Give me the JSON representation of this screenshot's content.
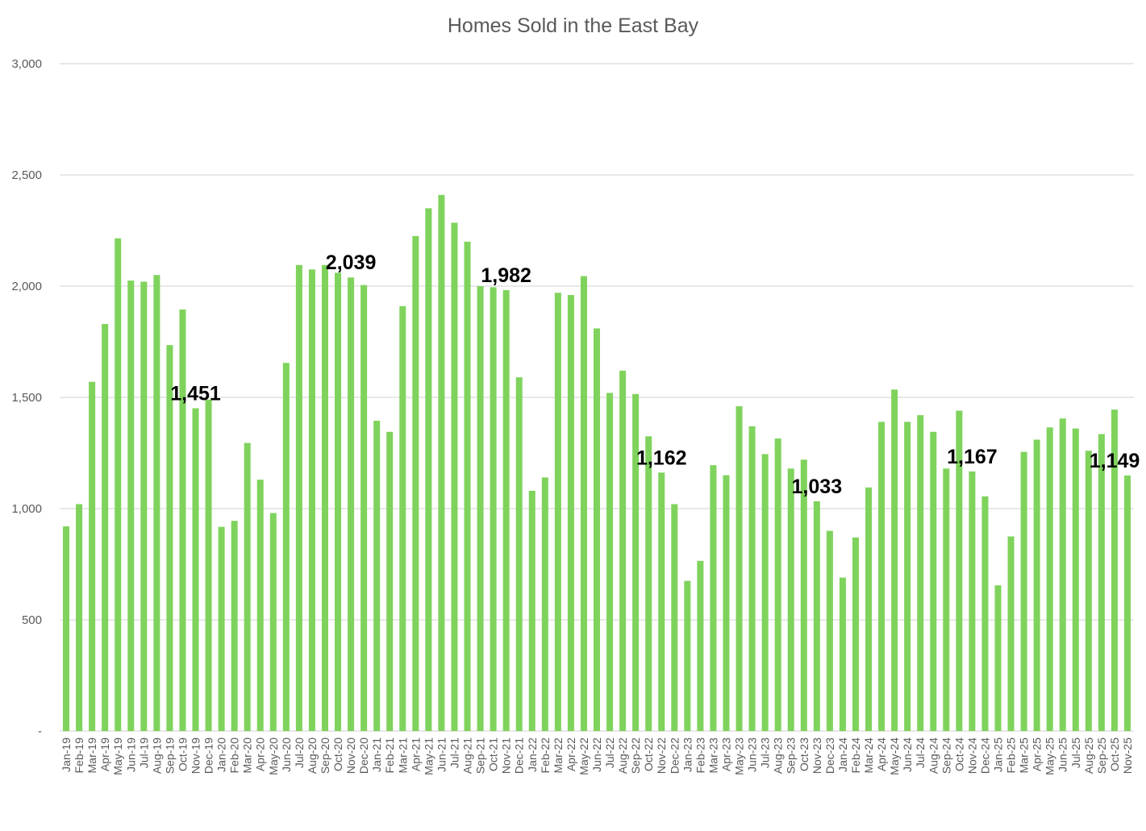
{
  "chart_data": {
    "type": "bar",
    "title": "Homes Sold in the East Bay",
    "xlabel": "",
    "ylabel": "",
    "ylim": [
      0,
      3000
    ],
    "y_ticks": [
      0,
      500,
      1000,
      1500,
      2000,
      2500,
      3000
    ],
    "y_tick_labels": [
      "-",
      "500",
      "1,000",
      "1,500",
      "2,000",
      "2,500",
      "3,000"
    ],
    "grid": true,
    "bar_color": "#7fd35c",
    "categories": [
      "Jan-19",
      "Feb-19",
      "Mar-19",
      "Apr-19",
      "May-19",
      "Jun-19",
      "Jul-19",
      "Aug-19",
      "Sep-19",
      "Oct-19",
      "Nov-19",
      "Dec-19",
      "Jan-20",
      "Feb-20",
      "Mar-20",
      "Apr-20",
      "May-20",
      "Jun-20",
      "Jul-20",
      "Aug-20",
      "Sep-20",
      "Oct-20",
      "Nov-20",
      "Dec-20",
      "Jan-21",
      "Feb-21",
      "Mar-21",
      "Apr-21",
      "May-21",
      "Jun-21",
      "Jul-21",
      "Aug-21",
      "Sep-21",
      "Oct-21",
      "Nov-21",
      "Dec-21",
      "Jan-22",
      "Feb-22",
      "Mar-22",
      "Apr-22",
      "May-22",
      "Jun-22",
      "Jul-22",
      "Aug-22",
      "Sep-22",
      "Oct-22",
      "Nov-22",
      "Dec-22",
      "Jan-23",
      "Feb-23",
      "Mar-23",
      "Apr-23",
      "May-23",
      "Jun-23",
      "Jul-23",
      "Aug-23",
      "Sep-23",
      "Oct-23",
      "Nov-23",
      "Dec-23",
      "Jan-24",
      "Feb-24",
      "Mar-24",
      "Apr-24",
      "May-24",
      "Jun-24",
      "Jul-24",
      "Aug-24",
      "Sep-24",
      "Oct-24",
      "Nov-24",
      "Dec-24",
      "Jan-25",
      "Feb-25",
      "Mar-25",
      "Apr-25",
      "May-25",
      "Jun-25",
      "Jul-25",
      "Aug-25",
      "Sep-25",
      "Oct-25",
      "Nov-25"
    ],
    "values": [
      920,
      1020,
      1570,
      1830,
      2215,
      2025,
      2020,
      2050,
      1735,
      1895,
      1451,
      1490,
      918,
      945,
      1295,
      1130,
      980,
      1655,
      2095,
      2075,
      2095,
      2060,
      2039,
      2005,
      1395,
      1345,
      1910,
      2225,
      2350,
      2410,
      2285,
      2200,
      2000,
      1995,
      1982,
      1590,
      1080,
      1140,
      1970,
      1960,
      2045,
      1810,
      1520,
      1620,
      1515,
      1325,
      1162,
      1020,
      675,
      765,
      1195,
      1150,
      1460,
      1370,
      1245,
      1315,
      1180,
      1220,
      1033,
      900,
      690,
      870,
      1095,
      1390,
      1535,
      1390,
      1420,
      1345,
      1180,
      1440,
      1167,
      1055,
      655,
      875,
      1255,
      1310,
      1365,
      1405,
      1360,
      1260,
      1335,
      1445,
      1149
    ],
    "data_labels": [
      {
        "category": "Nov-19",
        "text": "1,451"
      },
      {
        "category": "Nov-20",
        "text": "2,039"
      },
      {
        "category": "Nov-21",
        "text": "1,982"
      },
      {
        "category": "Nov-22",
        "text": "1,162"
      },
      {
        "category": "Nov-23",
        "text": "1,033"
      },
      {
        "category": "Nov-24",
        "text": "1,167"
      },
      {
        "category": "Nov-25",
        "text": "1,149"
      }
    ]
  }
}
